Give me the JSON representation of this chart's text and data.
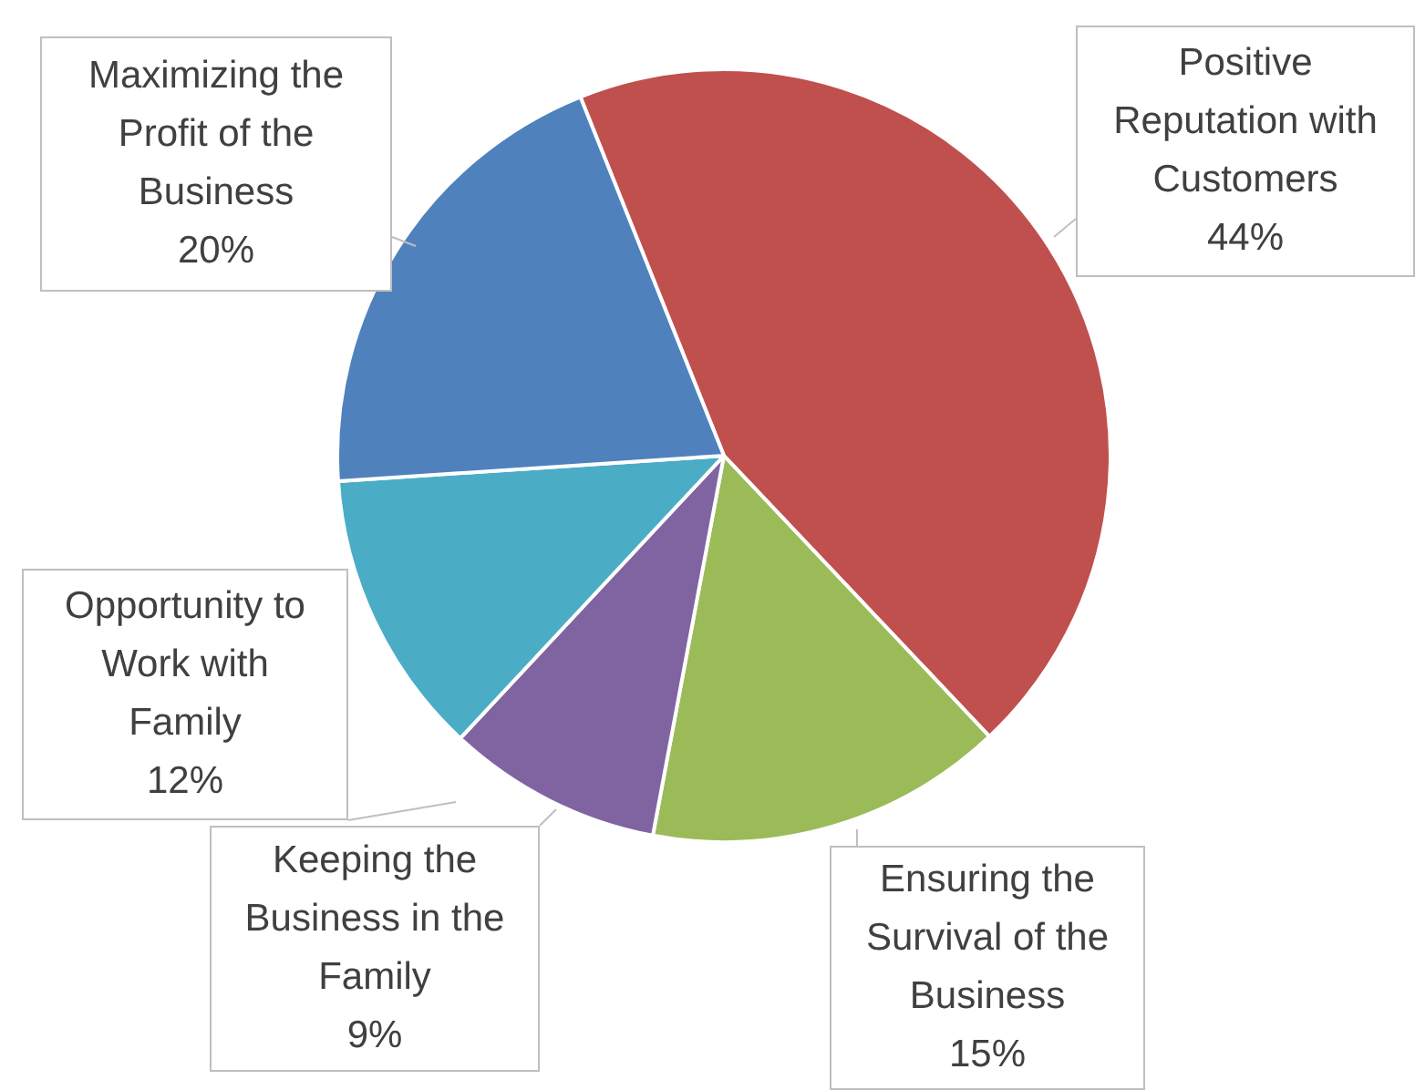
{
  "chart_data": {
    "type": "pie",
    "categories": [
      "Positive Reputation with Customers",
      "Ensuring the Survival of the Business",
      "Keeping the Business in the Family",
      "Opportunity to Work with Family",
      "Maximizing the Profit of the Business"
    ],
    "values": [
      44,
      15,
      9,
      12,
      20
    ],
    "colors": [
      "#c0504d",
      "#9bbb59",
      "#8064a2",
      "#4bacc6",
      "#4f81bd"
    ],
    "value_labels": [
      "44%",
      "15%",
      "9%",
      "12%",
      "20%"
    ]
  }
}
